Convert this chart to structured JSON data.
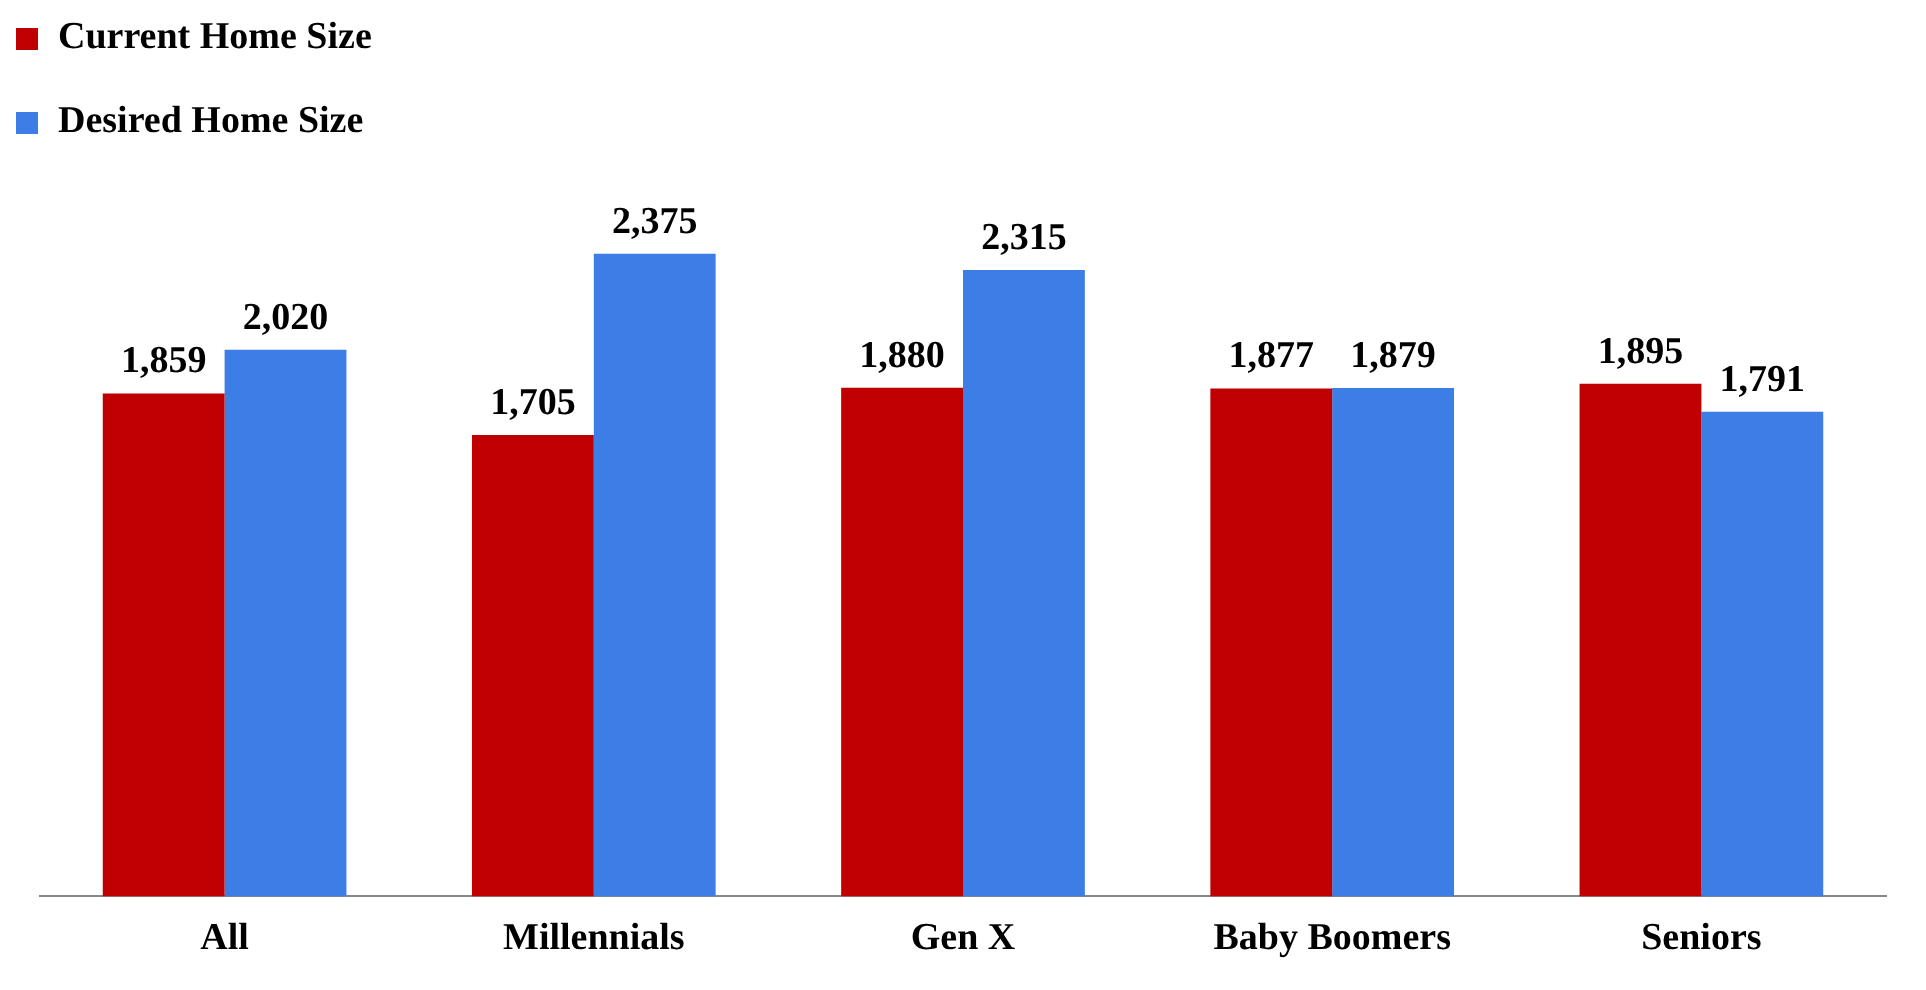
{
  "chart_data": {
    "type": "bar",
    "categories": [
      "All",
      "Millennials",
      "Gen X",
      "Baby Boomers",
      "Seniors"
    ],
    "series": [
      {
        "name": "Current Home Size",
        "color": "#c00000",
        "values": [
          1859,
          1705,
          1880,
          1877,
          1895
        ],
        "value_labels": [
          "1,859",
          "1,705",
          "1,880",
          "1,877",
          "1,895"
        ]
      },
      {
        "name": "Desired Home Size",
        "color": "#3c7ee6",
        "values": [
          2020,
          2375,
          2315,
          1879,
          1791
        ],
        "value_labels": [
          "2,020",
          "2,375",
          "2,315",
          "1,879",
          "1,791"
        ]
      }
    ],
    "legend": "top left",
    "grid": false,
    "tick_labels": "x"
  }
}
